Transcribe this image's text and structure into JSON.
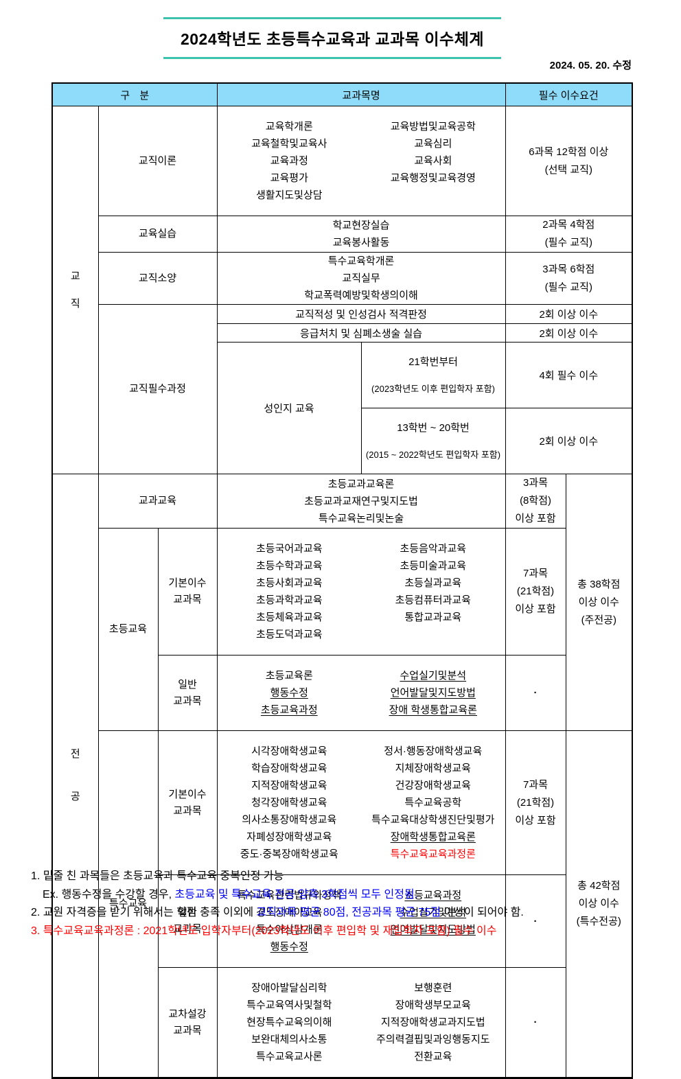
{
  "title": "2024학년도 초등특수교육과 교과목 이수체계",
  "revision_date": "2024. 05. 20. 수정",
  "colors": {
    "header_bg": "#8EDCFA",
    "title_line": "#3BC3AE",
    "note_blue": "#0000FF",
    "note_red": "#FF0000"
  },
  "table": {
    "header": {
      "category": "구 분",
      "subject": "교과목명",
      "requirement": "필수 이수요건"
    },
    "gyojik": {
      "label": "교\n직",
      "theory": {
        "label": "교직이론",
        "col_a": [
          "교육학개론",
          "교육철학및교육사",
          "교육과정",
          "교육평가",
          "생활지도및상담"
        ],
        "col_b": [
          "교육방법및교육공학",
          "교육심리",
          "교육사회",
          "교육행정및교육경영"
        ],
        "req": "6과목 12학점 이상\n(선택 교직)"
      },
      "practicum": {
        "label": "교육실습",
        "courses": [
          "학교현장실습",
          "교육봉사활동"
        ],
        "req": "2과목 4학점\n(필수 교직)"
      },
      "aptitude": {
        "label": "교직소양",
        "courses": [
          "특수교육학개론",
          "교직실무",
          "학교폭력예방및학생의이해"
        ],
        "req": "3과목 6학점\n(필수 교직)"
      },
      "required_course": {
        "label": "교직필수과정",
        "row1": {
          "course": "교직적성 및 인성검사 적격판정",
          "req": "2회 이상 이수"
        },
        "row2": {
          "course": "응급처치 및 심폐소생술 실습",
          "req": "2회 이상 이수"
        },
        "gender": {
          "label": "성인지 교육",
          "row1": {
            "line1": "21학번부터",
            "line2": "(2023학년도 이후 편입학자 포함)",
            "req": "4회 필수 이수"
          },
          "row2": {
            "line1": "13학번 ~ 20학번",
            "line2": "(2015 ~ 2022학년도 편입학자 포함)",
            "req": "2회 이상 이수"
          }
        }
      }
    },
    "jeongong": {
      "label": "전\n공",
      "subject_edu": {
        "label": "교과교육",
        "courses": [
          "초등교과교육론",
          "초등교과교재연구및지도법",
          "특수교육논리및논술"
        ],
        "req": "3과목\n(8학점)\n이상 포함"
      },
      "elementary": {
        "label": "초등교육",
        "basic": {
          "label": "기본이수\n교과목",
          "col_a": [
            "초등국어과교육",
            "초등수학과교육",
            "초등사회과교육",
            "초등과학과교육",
            "초등체육과교육",
            "초등도덕과교육"
          ],
          "col_b": [
            "초등음악과교육",
            "초등미술과교육",
            "초등실과교육",
            "초등컴퓨터과교육",
            "통합교과교육"
          ],
          "req": "7과목\n(21학점)\n이상 포함"
        },
        "general": {
          "label": "일반\n교과목",
          "col_a": [
            {
              "t": "초등교육론"
            },
            {
              "t": "행동수정",
              "u": true
            },
            {
              "t": "초등교육과정",
              "u": true
            }
          ],
          "col_b": [
            {
              "t": "수업실기및분석",
              "u": true
            },
            {
              "t": "언어발달및지도방법",
              "u": true
            },
            {
              "t": "장애 학생통합교육론",
              "u": true
            }
          ],
          "req": "·"
        },
        "total_req": "총 38학점\n이상 이수\n(주전공)"
      },
      "special": {
        "label": "특수교육",
        "basic": {
          "label": "기본이수\n교과목",
          "col_a": [
            "시각장애학생교육",
            "학습장애학생교육",
            "지적장애학생교육",
            "청각장애학생교육",
            "의사소통장애학생교육",
            "자폐성장애학생교육",
            "중도·중복장애학생교육"
          ],
          "col_b": [
            {
              "t": "정서·행동장애학생교육"
            },
            {
              "t": "지체장애학생교육"
            },
            {
              "t": "건강장애학생교육"
            },
            {
              "t": "특수교육공학"
            },
            {
              "t": "특수교육대상학생진단및평가"
            },
            {
              "t": "장애학생통합교육론",
              "u": true
            },
            {
              "t": "특수교육교육과정론",
              "red": true
            }
          ],
          "req": "7과목\n(21학점)\n이상 포함"
        },
        "general": {
          "label": "일반\n교과목",
          "col_a": [
            {
              "t": "특수교육관련법규와정책"
            },
            {
              "t": "경도장애아교육"
            },
            {
              "t": "특수아상담개론"
            },
            {
              "t": "행동수정",
              "u": true
            }
          ],
          "col_b": [
            {
              "t": "초등교육과정",
              "u": true
            },
            {
              "t": "수업실기및분석",
              "u": true
            },
            {
              "t": "언어발달및지도방법",
              "u": true
            }
          ],
          "req": "·"
        },
        "cross": {
          "label": "교차설강\n교과목",
          "col_a": [
            "장애아발달심리학",
            "특수교육역사및철학",
            "현장특수교육의이해",
            "보완대체의사소통",
            "특수교육교사론"
          ],
          "col_b": [
            "보행훈련",
            "장애학생부모교육",
            "지적장애학생교과지도법",
            "주의력결핍및과잉행동지도",
            "전환교육"
          ],
          "req": "·"
        },
        "total_req": "총 42학점\n이상 이수\n(특수전공)"
      }
    }
  },
  "notes": {
    "line1": [
      {
        "t": "1. 밑줄 친 과목들은 초등교육과 특수교육 중복인정 가능",
        "c": "k"
      }
    ],
    "line2": [
      {
        "t": "Ex. 행동수정을 수강할 경우, ",
        "c": "k"
      },
      {
        "t": "초등교육 및 특수교육 전공 양측 3학점씩 모두 인정됨.",
        "c": "b"
      }
    ],
    "line3": [
      {
        "t": "2. 교원 자격증을 받기 위해서는 학점 충족 이외에 ",
        "c": "k"
      },
      {
        "t": "교직과목 평균 80점, 전공과목 평균 75점",
        "c": "b"
      },
      {
        "t": " 이상이 되어야 함.",
        "c": "k"
      }
    ],
    "line4": [
      {
        "t": "3. 특수교육교육과정론 : 2021학년도 입학자부터(2023학년도 이후 편입학 및 재입학자 포함) 필수 이수",
        "c": "r"
      }
    ]
  }
}
